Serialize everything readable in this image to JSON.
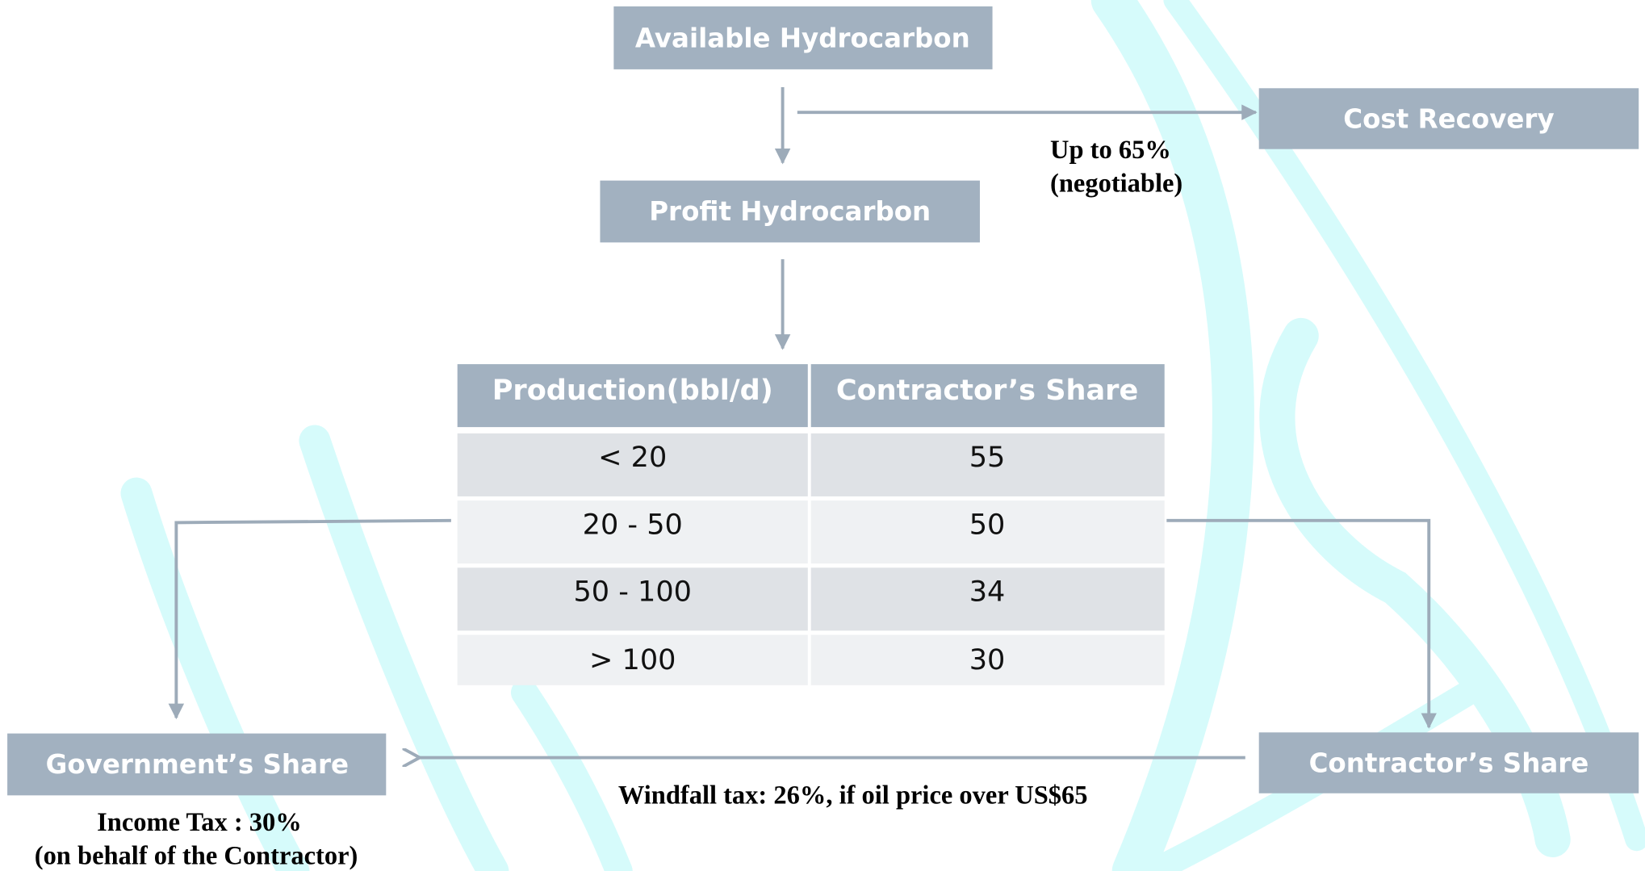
{
  "nodes": [
    {
      "label": "Available Hydrocarbon"
    },
    {
      "label": "Cost Recovery"
    },
    {
      "label": "Profit Hydrocarbon"
    },
    {
      "label": "Government’s Share"
    },
    {
      "label": "Contractor’s Share"
    }
  ],
  "annotations": {
    "cost_recovery": [
      "Up to 65%",
      "(negotiable)"
    ],
    "windfall": "Windfall tax: 26%, if oil price over US$65",
    "income_tax": [
      "Income Tax : 30%",
      "(on behalf of the Contractor)"
    ]
  },
  "table": {
    "header": [
      "Production(bbl/d)",
      "Contractor’s Share"
    ],
    "rows": [
      [
        "< 20",
        "55"
      ],
      [
        "20 - 50",
        "50"
      ],
      [
        "50 - 100",
        "34"
      ],
      [
        "> 100",
        "30"
      ]
    ]
  }
}
